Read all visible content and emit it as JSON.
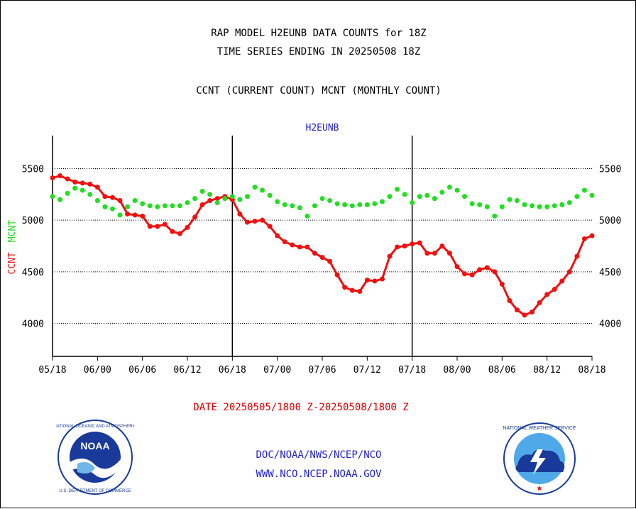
{
  "header": {
    "title_line1": "RAP MODEL H2EUNB DATA COUNTS for 18Z",
    "title_line2": "TIME SERIES ENDING IN 20250508 18Z",
    "subtitle": "CCNT (CURRENT COUNT) MCNT (MONTHLY COUNT)"
  },
  "footer": {
    "date_range": "DATE 20250505/1800 Z-20250508/1800 Z",
    "org_path": "DOC/NOAA/NWS/NCEP/NCO",
    "website": "WWW.NCO.NCEP.NOAA.GOV"
  },
  "colors": {
    "ccnt": "#ee1111",
    "mcnt": "#22dd22",
    "panel_title": "#2222cc"
  },
  "chart_data": {
    "type": "line",
    "title": "H2EUNB",
    "ylabel_parts": [
      {
        "text": "CCNT",
        "color": "#ee1111"
      },
      {
        "text": "MCNT",
        "color": "#22dd22"
      }
    ],
    "ylim": [
      3680,
      5820
    ],
    "yticks": [
      4000,
      4500,
      5000,
      5500
    ],
    "ytick_labels": [
      "4000",
      "4500",
      "5000",
      "5500"
    ],
    "xlim": [
      0,
      72
    ],
    "xticks": [
      0,
      6,
      12,
      18,
      24,
      30,
      36,
      42,
      48,
      54,
      60,
      66,
      72
    ],
    "xtick_labels": [
      "05/18",
      "06/00",
      "06/06",
      "06/12",
      "06/18",
      "07/00",
      "07/06",
      "07/12",
      "07/18",
      "08/00",
      "08/06",
      "08/12",
      "08/18"
    ],
    "day_dividers": [
      24,
      48
    ],
    "grid": "horizontal dotted",
    "legend": "left-vertical",
    "x": [
      0,
      1,
      2,
      3,
      4,
      5,
      6,
      7,
      8,
      9,
      10,
      11,
      12,
      13,
      14,
      15,
      16,
      17,
      18,
      19,
      20,
      21,
      22,
      23,
      24,
      25,
      26,
      27,
      28,
      29,
      30,
      31,
      32,
      33,
      34,
      35,
      36,
      37,
      38,
      39,
      40,
      41,
      42,
      43,
      44,
      45,
      46,
      47,
      48,
      49,
      50,
      51,
      52,
      53,
      54,
      55,
      56,
      57,
      58,
      59,
      60,
      61,
      62,
      63,
      64,
      65,
      66,
      67,
      68,
      69,
      70,
      71,
      72
    ],
    "series": [
      {
        "name": "CCNT",
        "color": "#ee1111",
        "values": [
          5410,
          5430,
          5400,
          5370,
          5360,
          5350,
          5320,
          5230,
          5220,
          5190,
          5060,
          5050,
          5040,
          4940,
          4940,
          4960,
          4890,
          4870,
          4930,
          5030,
          5150,
          5190,
          5210,
          5230,
          5200,
          5060,
          4980,
          4990,
          5000,
          4940,
          4850,
          4790,
          4760,
          4740,
          4740,
          4680,
          4640,
          4600,
          4470,
          4350,
          4320,
          4310,
          4420,
          4410,
          4430,
          4650,
          4740,
          4750,
          4770,
          4780,
          4680,
          4680,
          4750,
          4680,
          4550,
          4480,
          4470,
          4520,
          4540,
          4500,
          4380,
          4220,
          4130,
          4080,
          4110,
          4200,
          4280,
          4330,
          4410,
          4500,
          4650,
          4820,
          4850
        ]
      },
      {
        "name": "MCNT",
        "color": "#22dd22",
        "values": [
          5230,
          5200,
          5260,
          5310,
          5290,
          5250,
          5190,
          5130,
          5110,
          5050,
          5130,
          5190,
          5160,
          5140,
          5130,
          5140,
          5140,
          5140,
          5170,
          5210,
          5280,
          5250,
          5170,
          5210,
          5230,
          5200,
          5230,
          5320,
          5290,
          5240,
          5180,
          5150,
          5140,
          5120,
          5040,
          5140,
          5210,
          5190,
          5160,
          5150,
          5140,
          5150,
          5150,
          5160,
          5180,
          5230,
          5300,
          5250,
          5170,
          5230,
          5240,
          5210,
          5270,
          5320,
          5290,
          5230,
          5160,
          5150,
          5130,
          5040,
          5130,
          5200,
          5190,
          5150,
          5140,
          5130,
          5130,
          5140,
          5150,
          5170,
          5230,
          5290,
          5240
        ]
      }
    ]
  }
}
